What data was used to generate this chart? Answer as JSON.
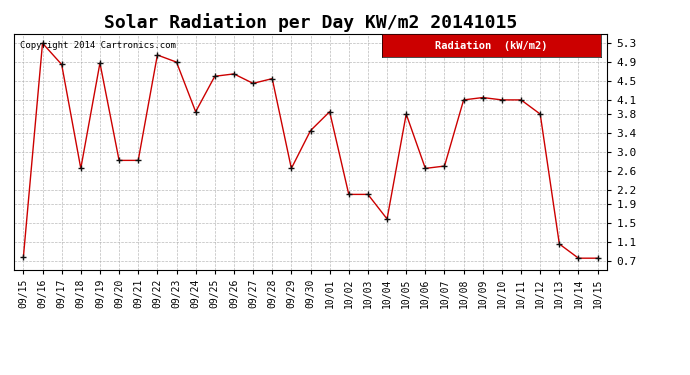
{
  "title": "Solar Radiation per Day KW/m2 20141015",
  "copyright": "Copyright 2014 Cartronics.com",
  "legend_label": "Radiation  (kW/m2)",
  "dates": [
    "09/15",
    "09/16",
    "09/17",
    "09/18",
    "09/19",
    "09/20",
    "09/21",
    "09/22",
    "09/23",
    "09/24",
    "09/25",
    "09/26",
    "09/27",
    "09/28",
    "09/29",
    "09/30",
    "10/01",
    "10/02",
    "10/03",
    "10/04",
    "10/05",
    "10/06",
    "10/07",
    "10/08",
    "10/09",
    "10/10",
    "10/11",
    "10/12",
    "10/13",
    "10/14",
    "10/15"
  ],
  "values": [
    0.77,
    5.3,
    4.85,
    2.65,
    4.88,
    2.82,
    2.82,
    5.05,
    4.9,
    3.85,
    4.6,
    4.65,
    4.45,
    4.55,
    2.65,
    3.45,
    3.85,
    2.1,
    2.1,
    1.58,
    3.8,
    2.65,
    2.7,
    4.1,
    4.15,
    4.1,
    4.1,
    3.8,
    1.05,
    0.75,
    0.75
  ],
  "yticks": [
    0.7,
    1.1,
    1.5,
    1.9,
    2.2,
    2.6,
    3.0,
    3.4,
    3.8,
    4.1,
    4.5,
    4.9,
    5.3
  ],
  "ylim": [
    0.5,
    5.5
  ],
  "line_color": "#cc0000",
  "marker_color": "#111111",
  "background_color": "#ffffff",
  "plot_bg_color": "#ffffff",
  "grid_color": "#aaaaaa",
  "title_fontsize": 13,
  "legend_bg": "#cc0000",
  "legend_text_color": "#ffffff"
}
